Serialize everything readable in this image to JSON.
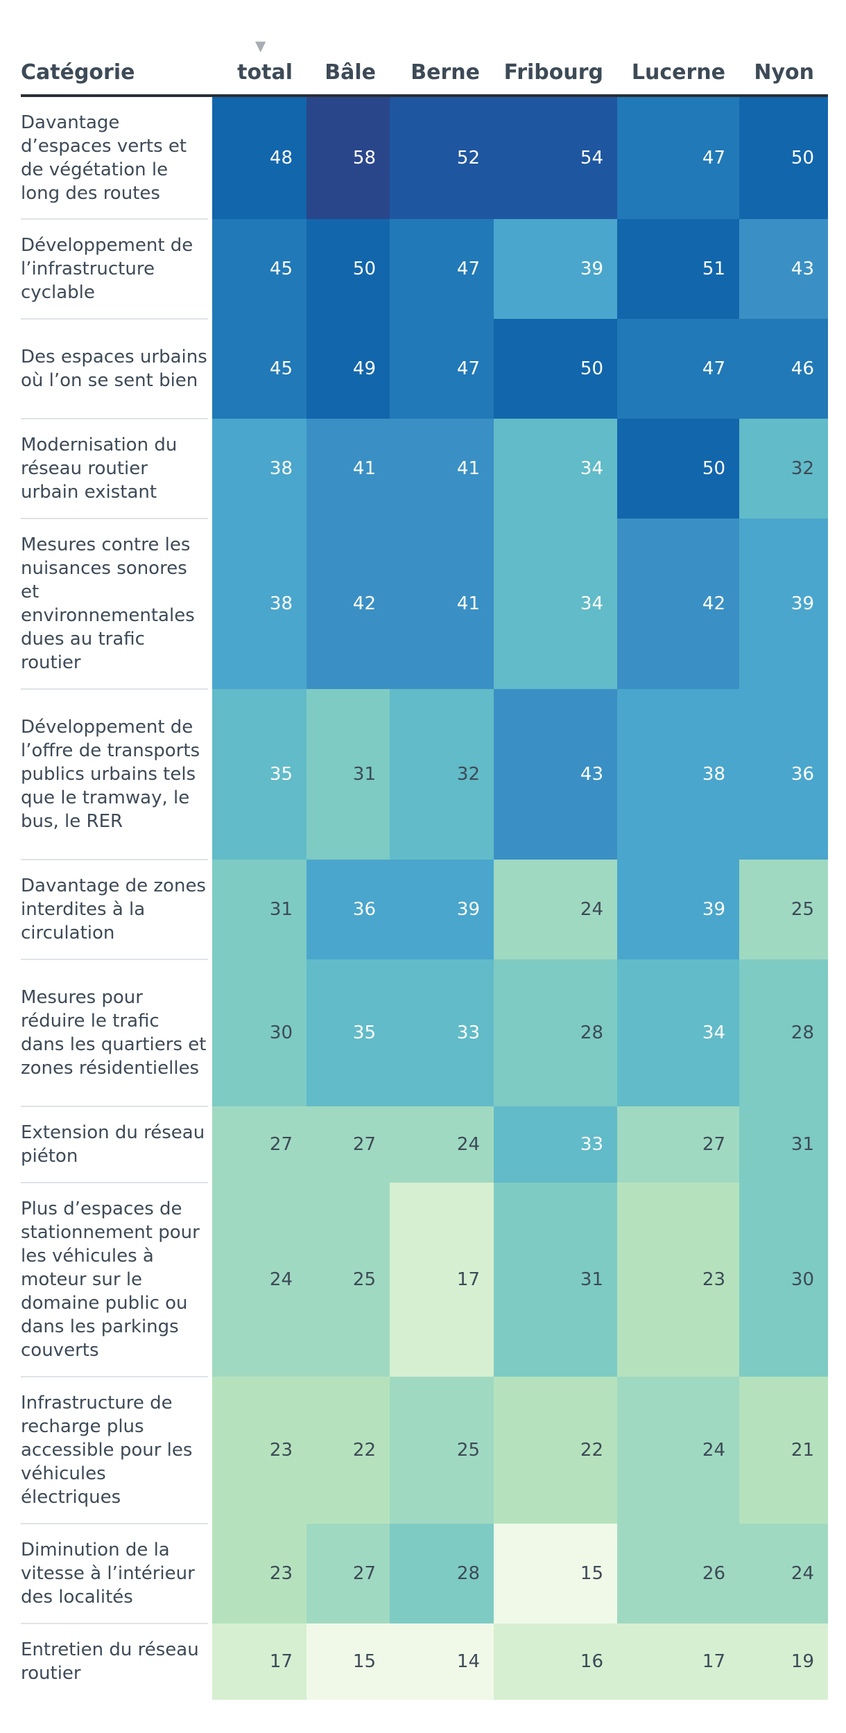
{
  "chart_data": {
    "type": "heatmap",
    "header_label": "Catégorie",
    "columns": [
      "total",
      "Bâle",
      "Berne",
      "Fribourg",
      "Lucerne",
      "Nyon"
    ],
    "sort_icon": "triangle-down-icon",
    "rows": [
      {
        "label": "Davantage d’espaces verts et de végétation le long des routes",
        "values": [
          48,
          58,
          52,
          54,
          47,
          50
        ]
      },
      {
        "label": "Développement de l’infrastructure cyclable",
        "values": [
          45,
          50,
          47,
          39,
          51,
          43
        ]
      },
      {
        "label": "Des espaces urbains où l’on se sent bien",
        "values": [
          45,
          49,
          47,
          50,
          47,
          46
        ]
      },
      {
        "label": "Modernisation du réseau routier urbain existant",
        "values": [
          38,
          41,
          41,
          34,
          50,
          32
        ]
      },
      {
        "label": "Mesures contre les nuisances sonores et environnementales dues au trafic routier",
        "values": [
          38,
          42,
          41,
          34,
          42,
          39
        ]
      },
      {
        "label": "Développement de l’offre de transports publics urbains tels que le tramway, le bus, le RER",
        "values": [
          35,
          31,
          32,
          43,
          38,
          36
        ]
      },
      {
        "label": "Davantage de zones interdites à la circulation",
        "values": [
          31,
          36,
          39,
          24,
          39,
          25
        ]
      },
      {
        "label": "Mesures pour réduire le trafic dans les quartiers et zones résidentielles",
        "values": [
          30,
          35,
          33,
          28,
          34,
          28
        ]
      },
      {
        "label": "Extension du réseau piéton",
        "values": [
          27,
          27,
          24,
          33,
          27,
          31
        ]
      },
      {
        "label": "Plus d’espaces de stationnement pour les véhicules à moteur sur le domaine public ou dans les parkings couverts",
        "values": [
          24,
          25,
          17,
          31,
          23,
          30
        ]
      },
      {
        "label": "Infrastructure de recharge plus accessible pour les véhicules électriques",
        "values": [
          23,
          22,
          25,
          22,
          24,
          21
        ]
      },
      {
        "label": "Diminution de la vitesse à l’intérieur des localités",
        "values": [
          23,
          27,
          28,
          15,
          26,
          24
        ]
      },
      {
        "label": "Entretien du réseau routier",
        "values": [
          17,
          15,
          14,
          16,
          17,
          19
        ]
      }
    ],
    "color_scale": [
      "#f0f9e8",
      "#d6efd1",
      "#b5e2bd",
      "#a0d9c1",
      "#7ecbc4",
      "#62bbc8",
      "#4aa6cc",
      "#3a90c4",
      "#2179b7",
      "#1266ac",
      "#1f56a0",
      "#2a468b"
    ]
  }
}
